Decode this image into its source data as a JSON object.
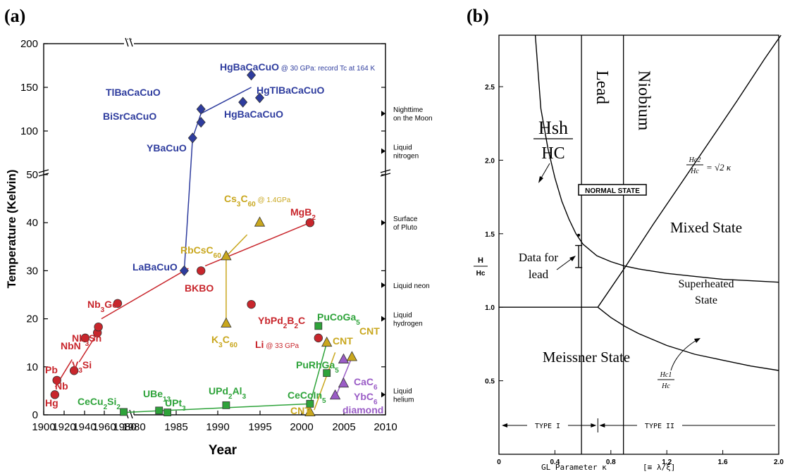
{
  "panel_a": {
    "label": "(a)",
    "chart_data": {
      "type": "scatter",
      "xlabel": "Year",
      "ylabel": "Temperature (Kelvin)",
      "x_ticks": [
        "1900",
        "1920",
        "1940",
        "1960",
        "1980",
        "1980",
        "1985",
        "1990",
        "1995",
        "2000",
        "2005",
        "2010"
      ],
      "y_ticks_lower": [
        "0",
        "10",
        "20",
        "30",
        "40",
        "50"
      ],
      "y_ticks_upper": [
        "100",
        "150",
        "200"
      ],
      "right_annotations": [
        {
          "text": "Nighttime on the Moon",
          "lines": [
            "Nighttime",
            "on the Moon"
          ],
          "temp": 120
        },
        {
          "text": "Liquid nitrogen",
          "lines": [
            "Liquid",
            "nitrogen"
          ],
          "temp": 77
        },
        {
          "text": "Surface of Pluto",
          "lines": [
            "Surface",
            "of Pluto"
          ],
          "temp": 40
        },
        {
          "text": "Liquid neon",
          "lines": [
            "Liquid neon"
          ],
          "temp": 27
        },
        {
          "text": "Liquid hydrogen",
          "lines": [
            "Liquid",
            "hydrogen"
          ],
          "temp": 20
        },
        {
          "text": "Liquid helium",
          "lines": [
            "Liquid",
            "helium"
          ],
          "temp": 4.2
        }
      ],
      "series": [
        {
          "kind": "conventional",
          "color": "#c8262c",
          "marker": "circle",
          "points": [
            {
              "name": "Hg",
              "year": 1911,
              "temp": 4.2
            },
            {
              "name": "Pb",
              "year": 1913,
              "temp": 7.2
            },
            {
              "name": "Nb",
              "year": 1930,
              "temp": 9.2
            },
            {
              "name": "NbN",
              "year": 1941,
              "temp": 16
            },
            {
              "name": "V3Si",
              "year": 1953,
              "temp": 17.1
            },
            {
              "name": "Nb3Sn",
              "year": 1954,
              "temp": 18.3
            },
            {
              "name": "Nb3Ge",
              "year": 1973,
              "temp": 23.2
            },
            {
              "name": "BKBO",
              "year": 1988,
              "temp": 30
            },
            {
              "name": "YbPd2B2C",
              "year": 1994,
              "temp": 23
            },
            {
              "name": "MgB2",
              "year": 2001,
              "temp": 40
            },
            {
              "name": "Li @ 33 GPa",
              "year": 2002,
              "temp": 16
            }
          ]
        },
        {
          "kind": "cuprate",
          "color": "#2e3c9e",
          "marker": "diamond",
          "points": [
            {
              "name": "LaBaCuO",
              "year": 1986,
              "temp": 30
            },
            {
              "name": "YBaCuO",
              "year": 1987,
              "temp": 92
            },
            {
              "name": "BiSrCaCuO",
              "year": 1988,
              "temp": 110
            },
            {
              "name": "TlBaCaCuO",
              "year": 1988,
              "temp": 125
            },
            {
              "name": "HgBaCaCuO",
              "year": 1993,
              "temp": 133
            },
            {
              "name": "HgTlBaCaCuO",
              "year": 1995,
              "temp": 138
            },
            {
              "name": "HgBaCaCuO @ 30 GPa: record Tc at 164 K",
              "year": 1994,
              "temp": 164
            }
          ]
        },
        {
          "kind": "fulleride",
          "color": "#c9a71e",
          "marker": "triangle",
          "points": [
            {
              "name": "K3C60",
              "year": 1991,
              "temp": 19
            },
            {
              "name": "RbCsC60",
              "year": 1991,
              "temp": 33
            },
            {
              "name": "Cs3C60 @ 1.4GPa",
              "year": 1995,
              "temp": 40
            },
            {
              "name": "CNT",
              "year": 2001,
              "temp": 0.5
            },
            {
              "name": "CNT",
              "year": 2003,
              "temp": 15
            },
            {
              "name": "CNT",
              "year": 2006,
              "temp": 12
            }
          ]
        },
        {
          "kind": "heavy-fermion",
          "color": "#2ea33a",
          "marker": "square",
          "points": [
            {
              "name": "CeCu2Si2",
              "year": 1979,
              "temp": 0.6
            },
            {
              "name": "UBe13",
              "year": 1983,
              "temp": 0.9
            },
            {
              "name": "UPt3",
              "year": 1984,
              "temp": 0.5
            },
            {
              "name": "UPd2Al3",
              "year": 1991,
              "temp": 2
            },
            {
              "name": "CeCoIn5",
              "year": 2001,
              "temp": 2.3
            },
            {
              "name": "PuRhGa5",
              "year": 2003,
              "temp": 8.7
            },
            {
              "name": "PuCoGa5",
              "year": 2002,
              "temp": 18.5
            }
          ]
        },
        {
          "kind": "graphite-diamond",
          "color": "#9a5cc6",
          "marker": "triangle",
          "points": [
            {
              "name": "diamond",
              "year": 2004,
              "temp": 4
            },
            {
              "name": "YbC6",
              "year": 2005,
              "temp": 6.5
            },
            {
              "name": "CaC6",
              "year": 2005,
              "temp": 11.5
            }
          ]
        }
      ]
    }
  },
  "panel_b": {
    "label": "(b)",
    "chart_data": {
      "type": "line",
      "xlabel": "GL Parameter κ",
      "xlabel_suffix": "[≡ λ/ξ]",
      "ylabel_num": "H",
      "ylabel_den": "Hc",
      "x_ticks": [
        "0",
        "0.4",
        "0.8",
        "1.2",
        "1.6",
        "2.0"
      ],
      "y_ticks": [
        "0.5",
        "1.0",
        "1.5",
        "2.0",
        "2.5"
      ],
      "xlim": [
        0,
        2.0
      ],
      "ylim": [
        0,
        2.85
      ],
      "vlines": [
        {
          "x": 0.59,
          "label": "Lead"
        },
        {
          "x": 0.89,
          "label": "Niobium"
        }
      ],
      "labels": {
        "normal_state": "NORMAL STATE",
        "mixed_state": "Mixed State",
        "superheated_state": "Superheated State",
        "superheated_lines": [
          "Superheated",
          "State"
        ],
        "meissner_state": "Meissner State",
        "data_for_lead": "Data for lead",
        "data_for_lead_lines": [
          "Data for",
          "lead"
        ],
        "hsh_num": "Hsh",
        "hsh_den": "HC",
        "hc2_num": "Hc2",
        "hc2_den": "Hc",
        "hc2_formula": "= √2 κ",
        "hc1_num": "Hc1",
        "hc1_den": "Hc",
        "type_i": "TYPE I",
        "type_ii": "TYPE II"
      },
      "series": [
        {
          "name": "Hsh/Hc",
          "x": [
            0.26,
            0.3,
            0.35,
            0.4,
            0.45,
            0.5,
            0.55,
            0.6,
            0.7,
            0.8,
            0.9,
            1.0,
            1.2,
            1.4,
            1.6,
            1.8,
            2.0
          ],
          "y": [
            2.85,
            2.35,
            2.08,
            1.88,
            1.72,
            1.6,
            1.5,
            1.43,
            1.35,
            1.31,
            1.28,
            1.26,
            1.23,
            1.21,
            1.19,
            1.18,
            1.17
          ]
        },
        {
          "name": "Hc2/Hc",
          "x": [
            0.707,
            0.9,
            1.1,
            1.3,
            1.5,
            1.7,
            1.9,
            2.016
          ],
          "y": [
            1.0,
            1.27,
            1.56,
            1.84,
            2.12,
            2.4,
            2.69,
            2.85
          ]
        },
        {
          "name": "Hc1/Hc",
          "x": [
            0.707,
            0.8,
            0.9,
            1.0,
            1.2,
            1.4,
            1.6,
            1.8,
            2.0
          ],
          "y": [
            1.0,
            0.93,
            0.87,
            0.82,
            0.74,
            0.68,
            0.64,
            0.6,
            0.57
          ]
        },
        {
          "name": "H=Hc",
          "x": [
            0,
            0.707
          ],
          "y": [
            1.0,
            1.0
          ]
        },
        {
          "name": "data-for-lead",
          "x": [
            0.57,
            0.57
          ],
          "y": [
            1.42,
            1.27
          ]
        }
      ]
    }
  }
}
